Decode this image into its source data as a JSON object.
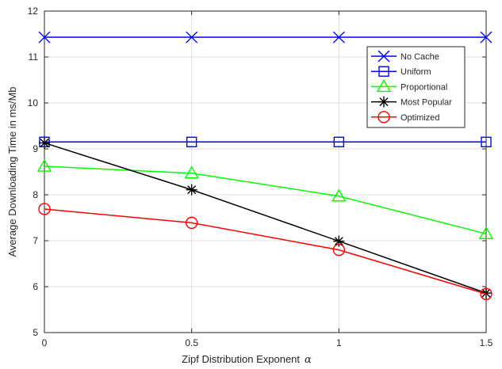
{
  "chart_data": {
    "type": "line",
    "title": "",
    "xlabel": "Zipf Distribution Exponent",
    "xlabel_symbol": "α",
    "ylabel": "Average Downloading Time in ms/Mb",
    "x": [
      0,
      0.5,
      1,
      1.5
    ],
    "xlim": [
      0,
      1.5
    ],
    "ylim": [
      5,
      12
    ],
    "xticks": [
      "0",
      "0.5",
      "1",
      "1.5"
    ],
    "yticks": [
      "5",
      "6",
      "7",
      "8",
      "9",
      "10",
      "11",
      "12"
    ],
    "grid": true,
    "legend_position": "top-right",
    "series": [
      {
        "name": "No Cache",
        "values": [
          11.43,
          11.43,
          11.43,
          11.43
        ],
        "color": "#0000ff",
        "marker": "x"
      },
      {
        "name": "Uniform",
        "values": [
          9.15,
          9.15,
          9.15,
          9.15
        ],
        "color": "#0000ff",
        "marker": "square"
      },
      {
        "name": "Proportional",
        "values": [
          8.62,
          8.47,
          7.97,
          7.15
        ],
        "color": "#00ff00",
        "marker": "triangle"
      },
      {
        "name": "Most Popular",
        "values": [
          9.13,
          8.11,
          6.99,
          5.86
        ],
        "color": "#000000",
        "marker": "asterisk"
      },
      {
        "name": "Optimized",
        "values": [
          7.69,
          7.39,
          6.8,
          5.84
        ],
        "color": "#ff0000",
        "marker": "circle"
      }
    ]
  }
}
